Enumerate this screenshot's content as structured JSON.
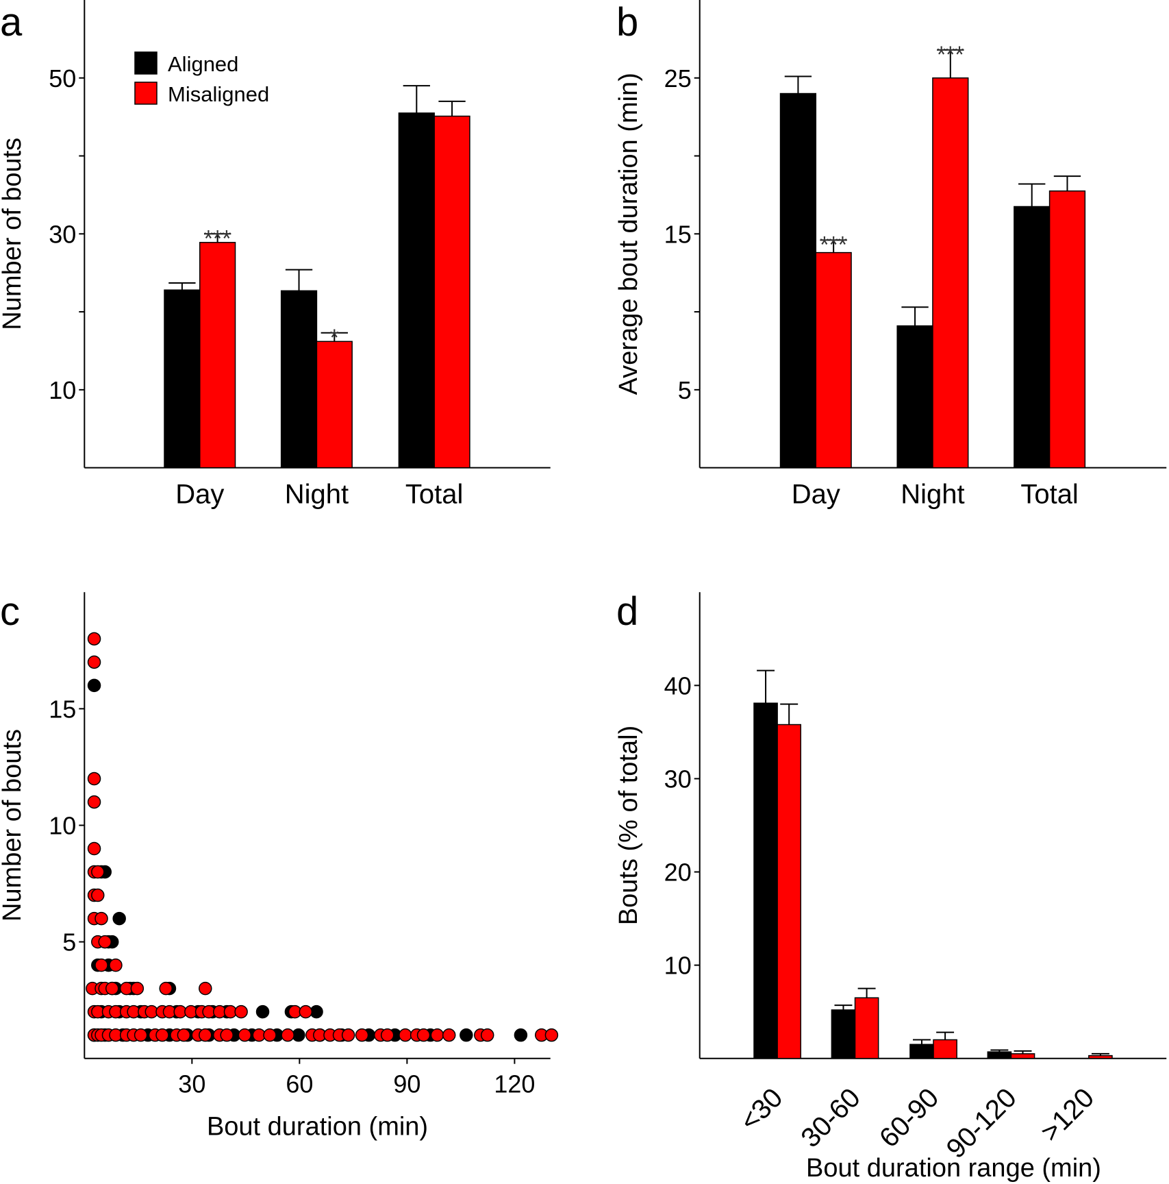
{
  "figure": {
    "colors": {
      "aligned": "#000000",
      "misaligned": "#ff0000",
      "star": "#333333"
    },
    "legend": [
      {
        "name": "Aligned",
        "color": "#000000"
      },
      {
        "name": "Misaligned",
        "color": "#ff0000"
      }
    ]
  },
  "chart_data": [
    {
      "panel": "a",
      "type": "bar",
      "title": "",
      "xlabel": "",
      "ylabel": "Number of bouts",
      "ylim": [
        0,
        60
      ],
      "yticks": [
        10,
        30,
        50
      ],
      "yminor_ticks": [
        20,
        40
      ],
      "categories": [
        "Day",
        "Night",
        "Total"
      ],
      "series": [
        {
          "name": "Aligned",
          "values": [
            22.8,
            22.7,
            45.5
          ],
          "error": [
            0.9,
            2.7,
            3.5
          ]
        },
        {
          "name": "Misaligned",
          "values": [
            28.9,
            16.2,
            45.1
          ],
          "error": [
            1.1,
            1.1,
            1.9
          ]
        }
      ],
      "annotations": [
        {
          "category": "Day",
          "series": "Misaligned",
          "text": "***"
        },
        {
          "category": "Night",
          "series": "Misaligned",
          "text": "*"
        }
      ],
      "legend": "top-left",
      "grid": false
    },
    {
      "panel": "b",
      "type": "bar",
      "title": "",
      "xlabel": "",
      "ylabel": "Average bout duration (min)",
      "ylim": [
        0,
        30
      ],
      "yticks": [
        5,
        15,
        25
      ],
      "yminor_ticks": [
        10,
        20
      ],
      "categories": [
        "Day",
        "Night",
        "Total"
      ],
      "series": [
        {
          "name": "Aligned",
          "values": [
            24.0,
            9.1,
            16.75
          ],
          "error": [
            1.1,
            1.2,
            1.45
          ]
        },
        {
          "name": "Misaligned",
          "values": [
            13.8,
            25.0,
            17.75
          ],
          "error": [
            0.8,
            1.8,
            0.95
          ]
        }
      ],
      "annotations": [
        {
          "category": "Day",
          "series": "Misaligned",
          "text": "***"
        },
        {
          "category": "Night",
          "series": "Misaligned",
          "text": "***"
        }
      ],
      "grid": false
    },
    {
      "panel": "c",
      "type": "scatter",
      "title": "",
      "xlabel": "Bout duration (min)",
      "ylabel": "Number of bouts",
      "xlim": [
        0,
        130
      ],
      "ylim": [
        0,
        20
      ],
      "xticks": [
        30,
        60,
        90,
        120
      ],
      "yticks": [
        5,
        10,
        15
      ],
      "series": [
        {
          "name": "Aligned",
          "points": [
            [
              1,
              16
            ],
            [
              3,
              8
            ],
            [
              4,
              8
            ],
            [
              8,
              6
            ],
            [
              5,
              5
            ],
            [
              6,
              5
            ],
            [
              2,
              4
            ],
            [
              5,
              4
            ],
            [
              6,
              3
            ],
            [
              7,
              3
            ],
            [
              11,
              3
            ],
            [
              12,
              3
            ],
            [
              22,
              3
            ],
            [
              3,
              2
            ],
            [
              8,
              2
            ],
            [
              14,
              2
            ],
            [
              24,
              2
            ],
            [
              30,
              2
            ],
            [
              34,
              2
            ],
            [
              38,
              2
            ],
            [
              48,
              2
            ],
            [
              56,
              2
            ],
            [
              63,
              2
            ],
            [
              1,
              1
            ],
            [
              4,
              1
            ],
            [
              9,
              1
            ],
            [
              16,
              1
            ],
            [
              22,
              1
            ],
            [
              27,
              1
            ],
            [
              33,
              1
            ],
            [
              40,
              1
            ],
            [
              45,
              1
            ],
            [
              52,
              1
            ],
            [
              58,
              1
            ],
            [
              64,
              1
            ],
            [
              70,
              1
            ],
            [
              77.6,
              1
            ],
            [
              84.9,
              1
            ],
            [
              94.8,
              1
            ],
            [
              104.8,
              1
            ],
            [
              120,
              1
            ]
          ]
        },
        {
          "name": "Misaligned",
          "points": [
            [
              1,
              18
            ],
            [
              1,
              17
            ],
            [
              1,
              12
            ],
            [
              1,
              11
            ],
            [
              1,
              9
            ],
            [
              1,
              8
            ],
            [
              2,
              8
            ],
            [
              1,
              7
            ],
            [
              2,
              7
            ],
            [
              1,
              6
            ],
            [
              3,
              6
            ],
            [
              2,
              5
            ],
            [
              4,
              5
            ],
            [
              3,
              4
            ],
            [
              7,
              4
            ],
            [
              0.5,
              3
            ],
            [
              3,
              3
            ],
            [
              4,
              3
            ],
            [
              6,
              3
            ],
            [
              10,
              3
            ],
            [
              13,
              3
            ],
            [
              21,
              3
            ],
            [
              32,
              3
            ],
            [
              1,
              2
            ],
            [
              2,
              2
            ],
            [
              5,
              2
            ],
            [
              7,
              2
            ],
            [
              10,
              2
            ],
            [
              12,
              2
            ],
            [
              15,
              2
            ],
            [
              17,
              2
            ],
            [
              20,
              2
            ],
            [
              22,
              2
            ],
            [
              25,
              2
            ],
            [
              28,
              2
            ],
            [
              31,
              2
            ],
            [
              33,
              2
            ],
            [
              36,
              2
            ],
            [
              39,
              2
            ],
            [
              42,
              2
            ],
            [
              57,
              2
            ],
            [
              60,
              2
            ],
            [
              1,
              1
            ],
            [
              2,
              1
            ],
            [
              3,
              1
            ],
            [
              5,
              1
            ],
            [
              7,
              1
            ],
            [
              10,
              1
            ],
            [
              12,
              1
            ],
            [
              14,
              1
            ],
            [
              18,
              1
            ],
            [
              20,
              1
            ],
            [
              24,
              1
            ],
            [
              26,
              1
            ],
            [
              30,
              1
            ],
            [
              32,
              1
            ],
            [
              36,
              1
            ],
            [
              38,
              1
            ],
            [
              43,
              1
            ],
            [
              47,
              1
            ],
            [
              50,
              1
            ],
            [
              55,
              1
            ],
            [
              61.8,
              1
            ],
            [
              63.9,
              1
            ],
            [
              66.8,
              1
            ],
            [
              69.4,
              1
            ],
            [
              71.9,
              1
            ],
            [
              75.7,
              1
            ],
            [
              80.9,
              1
            ],
            [
              82.8,
              1
            ],
            [
              87.8,
              1
            ],
            [
              91,
              1
            ],
            [
              92.9,
              1
            ],
            [
              96.7,
              1
            ],
            [
              100,
              1
            ],
            [
              108.8,
              1
            ],
            [
              110.7,
              1
            ],
            [
              125.8,
              1
            ],
            [
              128.6,
              1
            ]
          ]
        }
      ],
      "grid": false
    },
    {
      "panel": "d",
      "type": "bar",
      "title": "",
      "xlabel": "Bout duration range (min)",
      "ylabel": "Bouts (% of total)",
      "ylim": [
        0,
        50
      ],
      "yticks": [
        10,
        20,
        30,
        40
      ],
      "categories": [
        "<30",
        "30-60",
        "60-90",
        "90-120",
        ">120"
      ],
      "series": [
        {
          "name": "Aligned",
          "values": [
            38.1,
            5.2,
            1.5,
            0.7,
            0.0
          ],
          "error": [
            3.5,
            0.5,
            0.5,
            0.2,
            0.0
          ]
        },
        {
          "name": "Misaligned",
          "values": [
            35.8,
            6.5,
            2.0,
            0.5,
            0.3
          ],
          "error": [
            2.2,
            1.0,
            0.8,
            0.3,
            0.2
          ]
        }
      ],
      "grid": false
    }
  ]
}
